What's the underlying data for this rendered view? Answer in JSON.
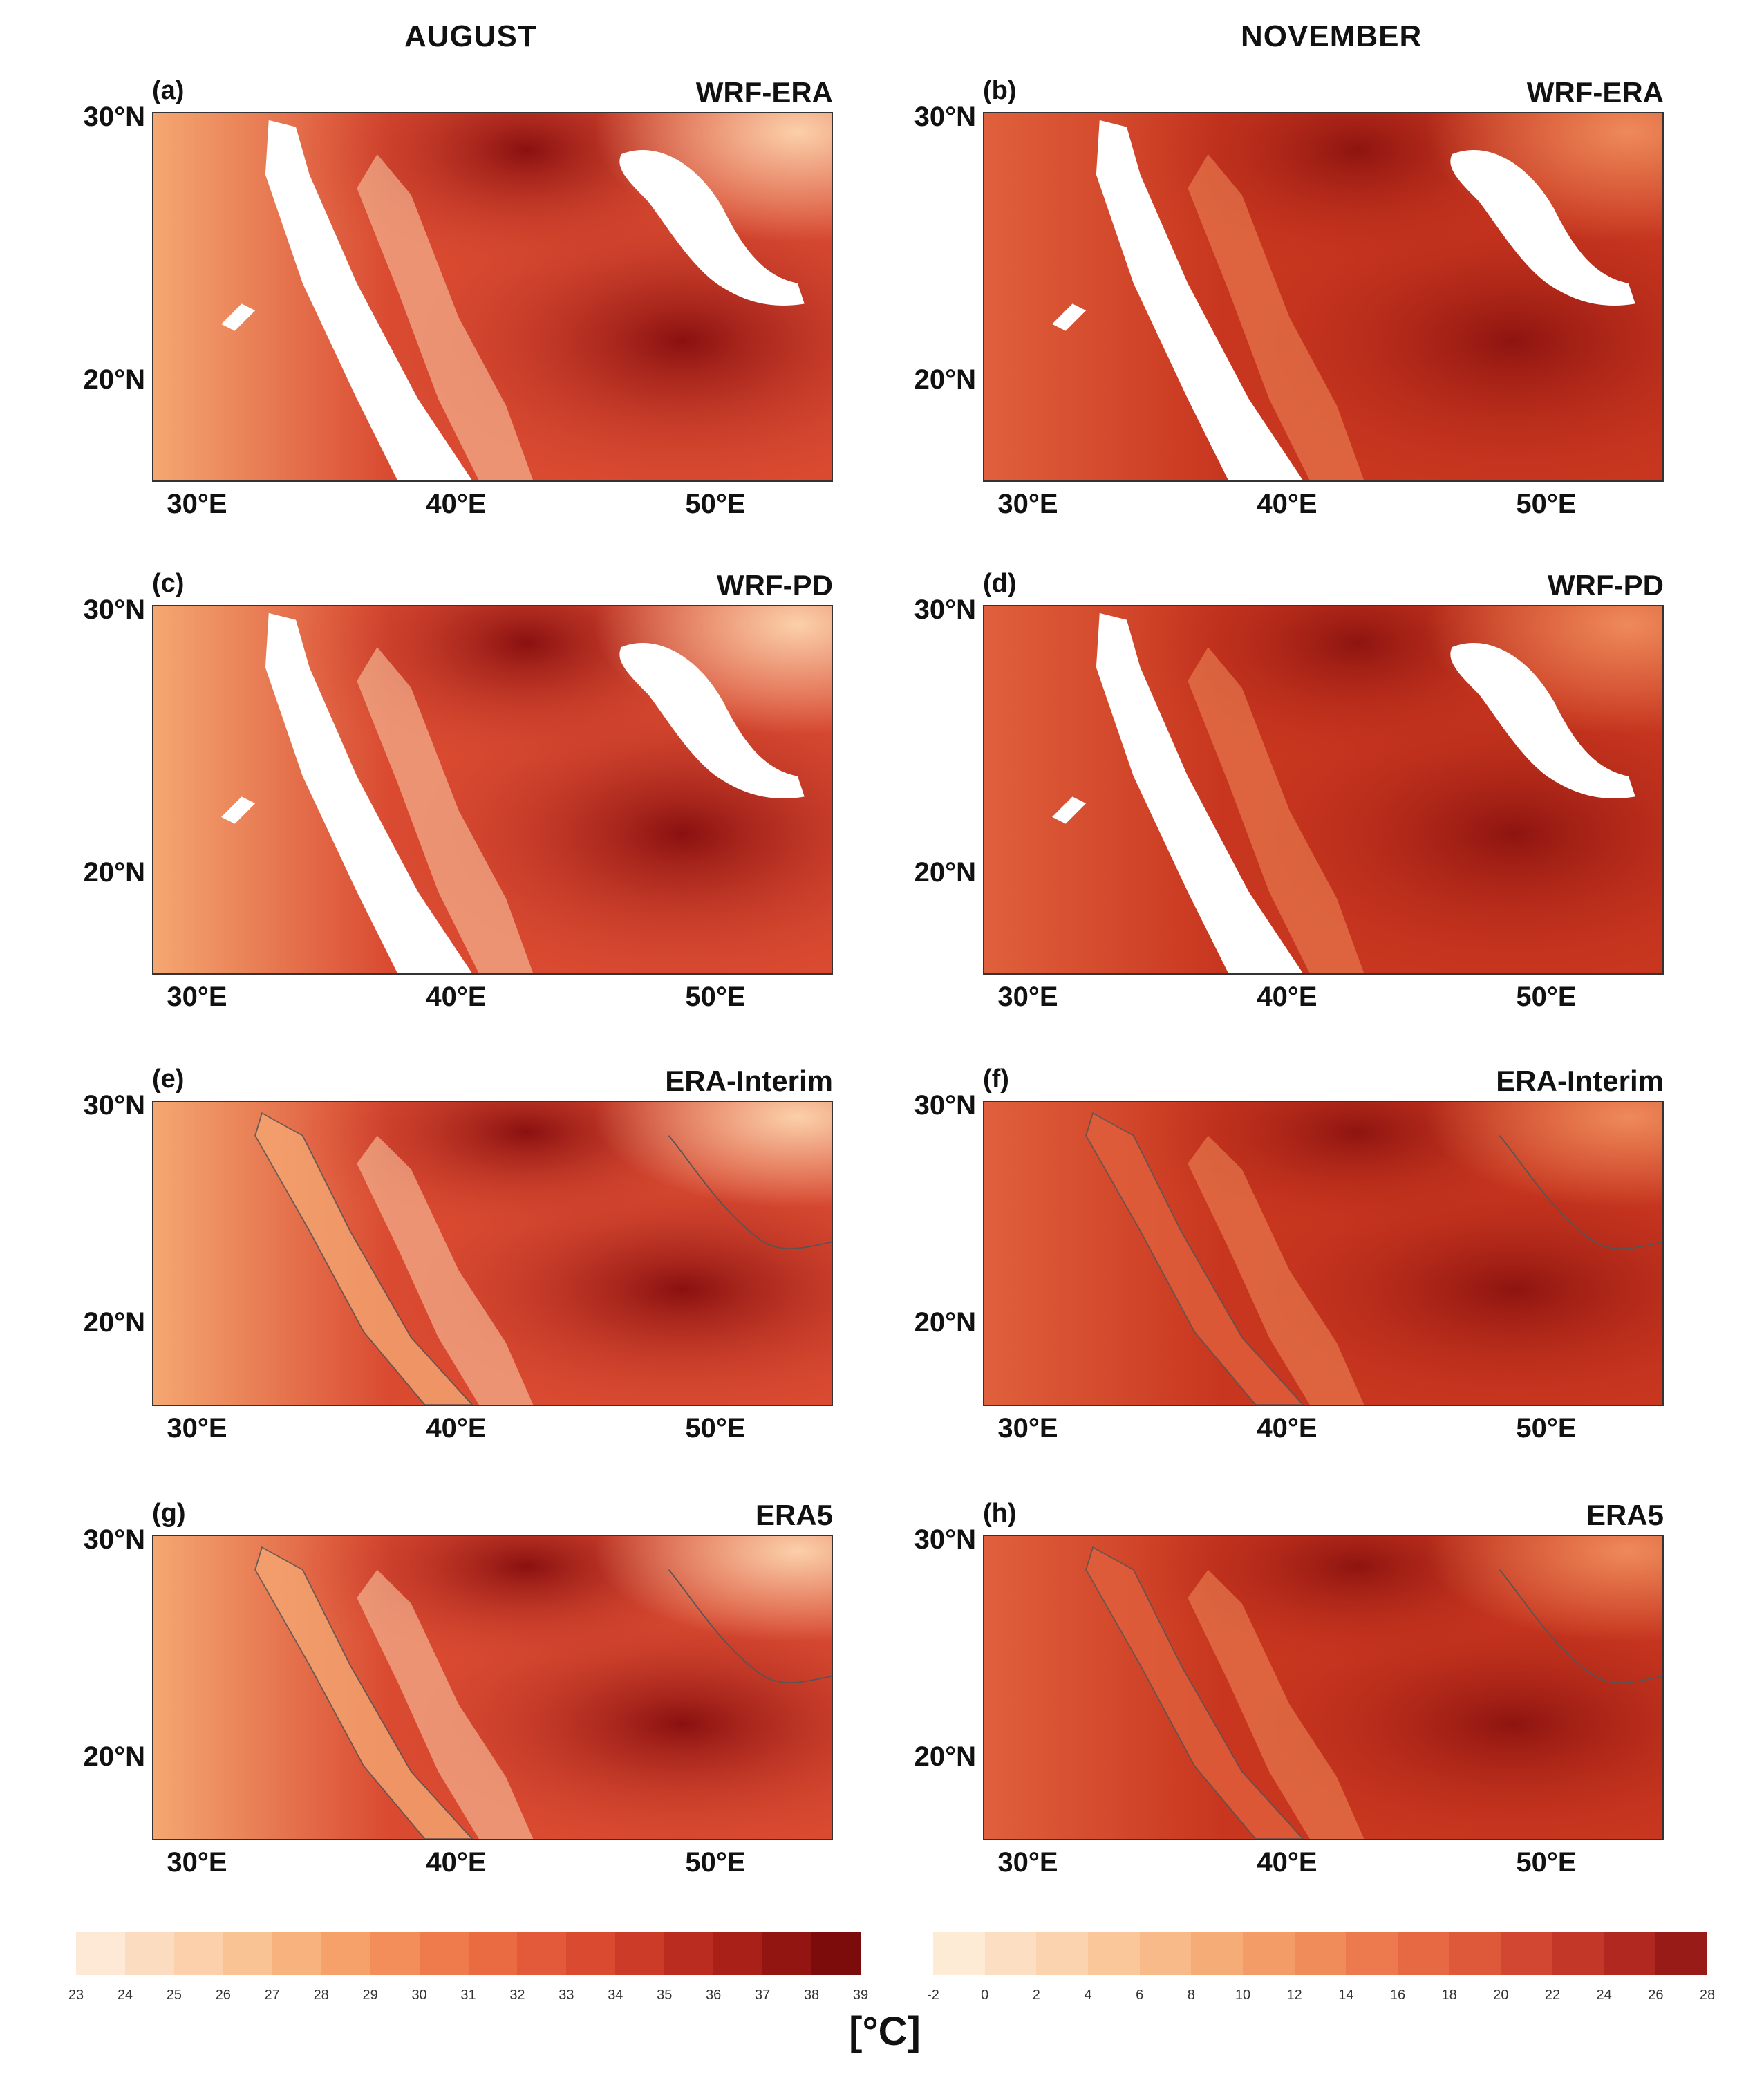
{
  "columns": {
    "left": "AUGUST",
    "right": "NOVEMBER"
  },
  "panels": [
    {
      "id": "a",
      "letter": "(a)",
      "source": "WRF-ERA",
      "month": "AUGUST",
      "lat_labels": [
        "30°N",
        "20°N"
      ],
      "lon_labels": [
        "30°E",
        "40°E",
        "50°E"
      ]
    },
    {
      "id": "b",
      "letter": "(b)",
      "source": "WRF-ERA",
      "month": "NOVEMBER",
      "lat_labels": [
        "30°N",
        "20°N"
      ],
      "lon_labels": [
        "30°E",
        "40°E",
        "50°E"
      ]
    },
    {
      "id": "c",
      "letter": "(c)",
      "source": "WRF-PD",
      "month": "AUGUST",
      "lat_labels": [
        "30°N",
        "20°N"
      ],
      "lon_labels": [
        "30°E",
        "40°E",
        "50°E"
      ]
    },
    {
      "id": "d",
      "letter": "(d)",
      "source": "WRF-PD",
      "month": "NOVEMBER",
      "lat_labels": [
        "30°N",
        "20°N"
      ],
      "lon_labels": [
        "30°E",
        "40°E",
        "50°E"
      ]
    },
    {
      "id": "e",
      "letter": "(e)",
      "source": "ERA-Interim",
      "month": "AUGUST",
      "lat_labels": [
        "30°N",
        "20°N"
      ],
      "lon_labels": [
        "30°E",
        "40°E",
        "50°E"
      ]
    },
    {
      "id": "f",
      "letter": "(f)",
      "source": "ERA-Interim",
      "month": "NOVEMBER",
      "lat_labels": [
        "30°N",
        "20°N"
      ],
      "lon_labels": [
        "30°E",
        "40°E",
        "50°E"
      ]
    },
    {
      "id": "g",
      "letter": "(g)",
      "source": "ERA5",
      "month": "AUGUST",
      "lat_labels": [
        "30°N",
        "20°N"
      ],
      "lon_labels": [
        "30°E",
        "40°E",
        "50°E"
      ]
    },
    {
      "id": "h",
      "letter": "(h)",
      "source": "ERA5",
      "month": "NOVEMBER",
      "lat_labels": [
        "30°N",
        "20°N"
      ],
      "lon_labels": [
        "30°E",
        "40°E",
        "50°E"
      ]
    }
  ],
  "colorbar_august": {
    "ticks": [
      "23",
      "24",
      "25",
      "26",
      "27",
      "28",
      "29",
      "30",
      "31",
      "32",
      "33",
      "34",
      "35",
      "36",
      "37",
      "38",
      "39"
    ],
    "colors": [
      "#fde9d6",
      "#fcdcc0",
      "#fbd0aa",
      "#fac394",
      "#f8b27e",
      "#f6a06a",
      "#f38e5a",
      "#ef7b4c",
      "#ea6a42",
      "#e35a3a",
      "#d94a31",
      "#cc3b28",
      "#bb2c20",
      "#a92019",
      "#931512",
      "#7c0c0c"
    ]
  },
  "colorbar_november": {
    "ticks": [
      "-2",
      "0",
      "2",
      "4",
      "6",
      "8",
      "10",
      "12",
      "14",
      "16",
      "18",
      "20",
      "22",
      "24",
      "26",
      "28"
    ],
    "colors": [
      "#fdebd6",
      "#fcdfc2",
      "#fbd3ae",
      "#f9c79a",
      "#f8ba88",
      "#f6ac77",
      "#f39c68",
      "#f08b5a",
      "#ec7a4e",
      "#e66944",
      "#de583a",
      "#d24731",
      "#c33728",
      "#b0281f",
      "#991b17"
    ]
  },
  "unit": "[°C]"
}
